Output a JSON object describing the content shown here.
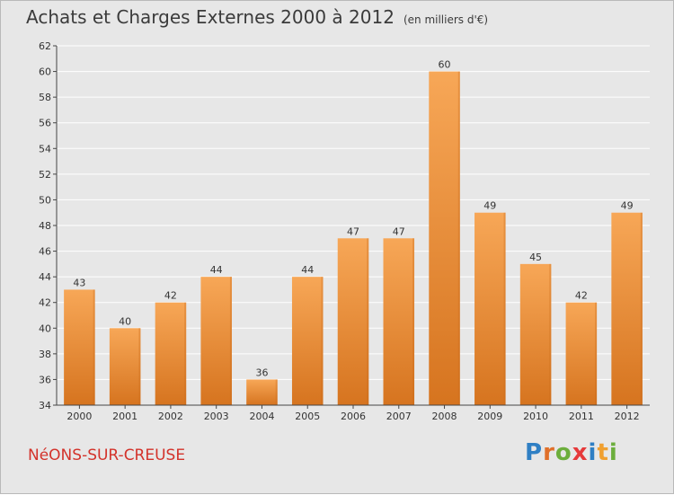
{
  "title": "Achats et Charges Externes 2000 à 2012",
  "unit": "(en milliers d'€)",
  "commune": "NéONS-SUR-CREUSE",
  "logo": {
    "text": "Proxiti",
    "letter_colors": [
      "#2f7fc4",
      "#e0702a",
      "#6cae3c",
      "#e6393a",
      "#2f7fc4",
      "#f0a030",
      "#6cae3c"
    ]
  },
  "colors": {
    "bar_top": "#f7a757",
    "bar_bottom": "#d6741f",
    "background": "#e7e7e7",
    "grid": "#ffffff",
    "axis": "#444444",
    "text": "#333333",
    "commune": "#d3322a"
  },
  "chart_data": {
    "type": "bar",
    "title": "Achats et Charges Externes 2000 à 2012",
    "subtitle": "(en milliers d'€)",
    "categories": [
      "2000",
      "2001",
      "2002",
      "2003",
      "2004",
      "2005",
      "2006",
      "2007",
      "2008",
      "2009",
      "2010",
      "2011",
      "2012"
    ],
    "values": [
      43,
      40,
      42,
      44,
      36,
      44,
      47,
      47,
      60,
      49,
      45,
      42,
      49
    ],
    "ylim": [
      34,
      62
    ],
    "yticks": [
      34,
      36,
      38,
      40,
      42,
      44,
      46,
      48,
      50,
      52,
      54,
      56,
      58,
      60,
      62
    ],
    "grid": true,
    "data_labels": true,
    "xlabel": "",
    "ylabel": ""
  }
}
